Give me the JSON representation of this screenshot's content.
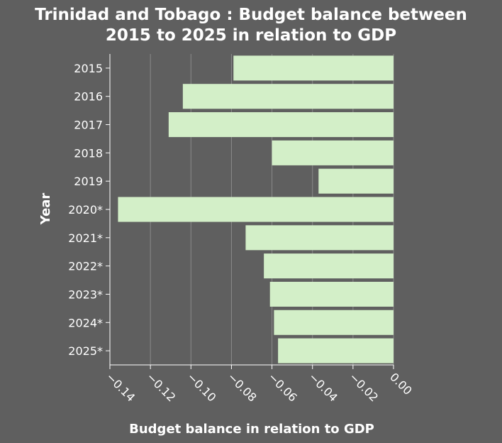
{
  "chart_data": {
    "type": "bar",
    "orientation": "horizontal",
    "title_lines": [
      "Trinidad and Tobago : Budget balance between",
      "2015 to 2025 in relation to GDP"
    ],
    "xlabel": "Budget balance in relation to GDP",
    "ylabel": "Year",
    "xlim": [
      -0.14,
      0.0
    ],
    "xticks": [
      -0.14,
      -0.12,
      -0.1,
      -0.08,
      -0.06,
      -0.04,
      -0.02,
      0.0
    ],
    "xtick_labels": [
      "−0.14",
      "−0.12",
      "−0.10",
      "−0.08",
      "−0.06",
      "−0.04",
      "−0.02",
      "0.00"
    ],
    "grid": "vertical",
    "categories": [
      "2015",
      "2016",
      "2017",
      "2018",
      "2019",
      "2020*",
      "2021*",
      "2022*",
      "2023*",
      "2024*",
      "2025*"
    ],
    "values": [
      -0.079,
      -0.104,
      -0.111,
      -0.06,
      -0.037,
      -0.136,
      -0.073,
      -0.064,
      -0.061,
      -0.059,
      -0.057
    ],
    "colors": {
      "bar": "#d3efc8",
      "background": "#5f5f5f",
      "grid": "#8a8a8a",
      "text": "#ffffff"
    }
  }
}
